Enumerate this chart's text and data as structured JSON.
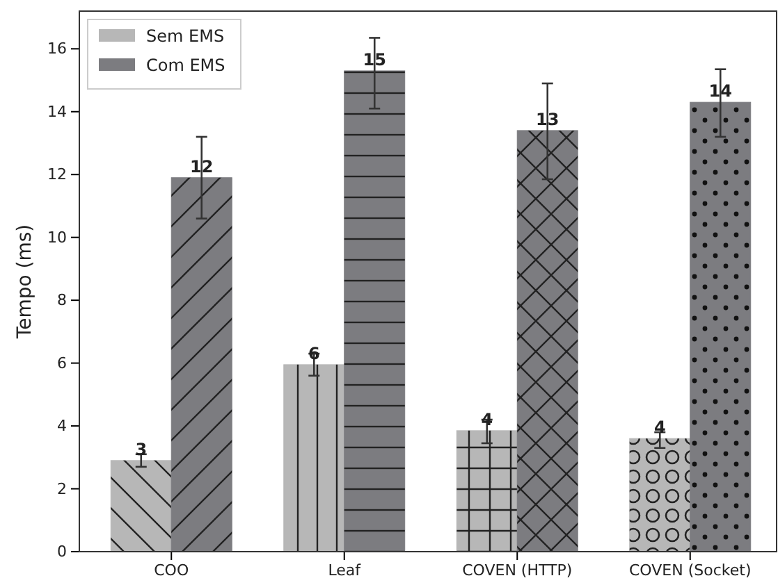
{
  "chart_data": {
    "type": "bar",
    "ylabel": "Tempo (ms)",
    "categories": [
      "COO",
      "Leaf",
      "COVEN (HTTP)",
      "COVEN (Socket)"
    ],
    "series": [
      {
        "name": "Sem EMS",
        "color": "#b7b7b7",
        "values": [
          2.9,
          5.95,
          3.85,
          3.6
        ],
        "errors": [
          [
            2.7,
            3.1
          ],
          [
            5.6,
            6.3
          ],
          [
            3.45,
            4.2
          ],
          [
            3.3,
            3.8
          ]
        ],
        "value_labels": [
          "3",
          "6",
          "4",
          "4"
        ]
      },
      {
        "name": "Com EMS",
        "color": "#7c7c80",
        "values": [
          11.9,
          15.3,
          13.4,
          14.3
        ],
        "errors": [
          [
            10.6,
            13.2
          ],
          [
            14.1,
            16.35
          ],
          [
            11.85,
            14.9
          ],
          [
            13.2,
            15.35
          ]
        ],
        "value_labels": [
          "12",
          "15",
          "13",
          "14"
        ]
      }
    ],
    "ylim": [
      0,
      17.2
    ],
    "yticks": [
      0,
      2,
      4,
      6,
      8,
      10,
      12,
      14,
      16
    ],
    "grid": false,
    "legend": "top left"
  }
}
